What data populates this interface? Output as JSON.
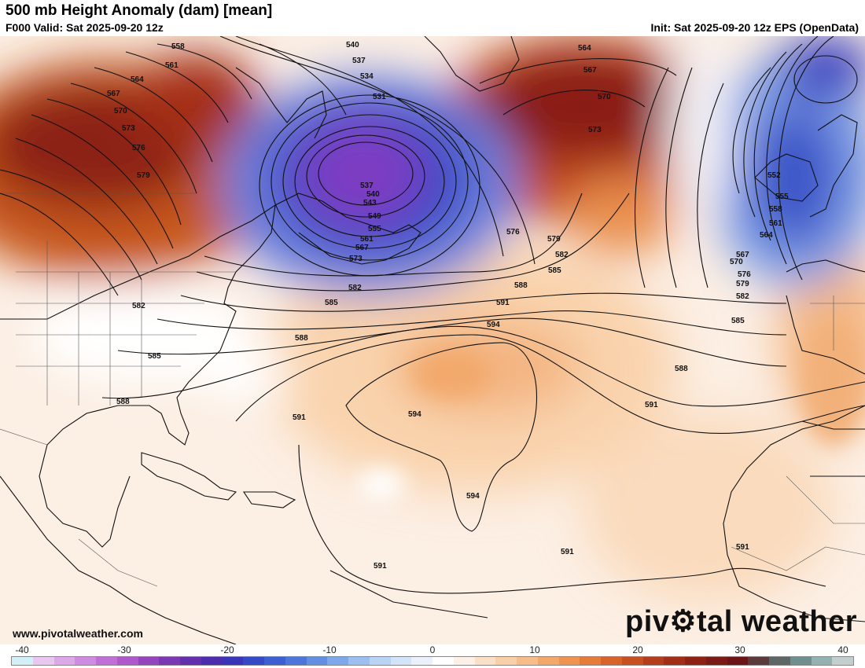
{
  "header": {
    "title": "500 mb Height Anomaly (dam) [mean]",
    "valid": "F000 Valid: Sat 2025-09-20 12z",
    "init": "Init: Sat 2025-09-20 12z EPS (OpenData)"
  },
  "footer": {
    "website": "www.pivotalweather.com",
    "brand_before": "piv",
    "brand_after": "tal weather"
  },
  "colorbar": {
    "ticks": [
      "-40",
      "-30",
      "-20",
      "-10",
      "0",
      "10",
      "20",
      "30",
      "40"
    ],
    "colors": [
      "#d4f0f7",
      "#e8c8ef",
      "#dca8e8",
      "#cf8be0",
      "#c06fd6",
      "#ae58cb",
      "#9444bd",
      "#7a38b3",
      "#6230ad",
      "#4c2dae",
      "#3a35b8",
      "#3548c6",
      "#3c5fd1",
      "#4c76da",
      "#628fe2",
      "#7ea8ea",
      "#9cbff0",
      "#b9d3f5",
      "#d4e4f8",
      "#eaf1fb",
      "#ffffff",
      "#fdf0e6",
      "#fbe0c8",
      "#f9cfa8",
      "#f6bd89",
      "#f3a86b",
      "#ee9350",
      "#e57b39",
      "#d8632a",
      "#c74f20",
      "#b43e1b",
      "#a12f18",
      "#8e2315",
      "#7c1a16",
      "#6b1518",
      "#5a3a3a",
      "#5e6666",
      "#6f8f8f",
      "#93b1b1",
      "#c3cfcf"
    ]
  },
  "contours": {
    "west_high": [
      "558",
      "561",
      "564",
      "567",
      "570",
      "573",
      "576",
      "579"
    ],
    "low_core": [
      "540",
      "537",
      "534",
      "531",
      "537",
      "540",
      "543",
      "549",
      "555",
      "561",
      "567",
      "573"
    ],
    "midlat": [
      "576",
      "579",
      "582",
      "585",
      "588",
      "591",
      "594",
      "594",
      "594",
      "591",
      "591",
      "588",
      "585",
      "582",
      "588",
      "591",
      "591",
      "585",
      "582",
      "588"
    ],
    "east_ridge": [
      "564",
      "567",
      "570",
      "573"
    ],
    "east_trough": [
      "552",
      "555",
      "558",
      "561",
      "564",
      "567",
      "570",
      "576",
      "579",
      "582",
      "585",
      "588",
      "591"
    ]
  }
}
